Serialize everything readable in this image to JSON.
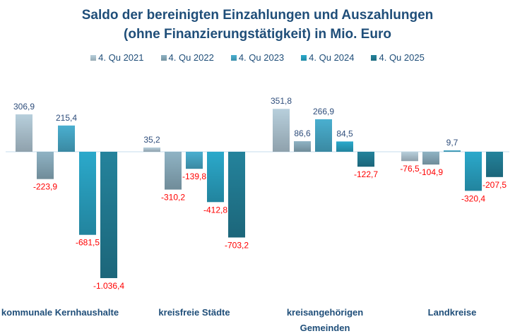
{
  "chart_data": {
    "type": "bar",
    "title": "Saldo der bereinigten Einzahlungen und Auszahlungen",
    "subtitle": "(ohne Finanzierungstätigkeit) in Mio. Euro",
    "categories": [
      "kommunale Kernhaushalte",
      "kreisfreie Städte",
      "kreisangehörigen Gemeinden",
      "Landkreise"
    ],
    "series": [
      {
        "name": "4. Qu 2021",
        "values": [
          306.9,
          35.2,
          351.8,
          -76.5
        ],
        "labels": [
          "306,9",
          "35,2",
          "351,8",
          "-76,5"
        ]
      },
      {
        "name": "4. Qu 2022",
        "values": [
          -223.9,
          -310.2,
          86.6,
          -104.9
        ],
        "labels": [
          "-223,9",
          "-310,2",
          "86,6",
          "-104,9"
        ]
      },
      {
        "name": "4. Qu 2023",
        "values": [
          215.4,
          -139.8,
          266.9,
          9.7
        ],
        "labels": [
          "215,4",
          "-139,8",
          "266,9",
          "9,7"
        ]
      },
      {
        "name": "4. Qu 2024",
        "values": [
          -681.5,
          -412.8,
          84.5,
          -320.4
        ],
        "labels": [
          "-681,5",
          "-412,8",
          "84,5",
          "-320,4"
        ]
      },
      {
        "name": "4. Qu 2025",
        "values": [
          -1036.4,
          -703.2,
          -122.7,
          -207.5
        ],
        "labels": [
          "-1.036,4",
          "-703,2",
          "-122,7",
          "-207,5"
        ]
      }
    ],
    "legend_position": "top",
    "grid": false,
    "xlabel": "",
    "ylabel": "",
    "ylim": [
      -1100,
      400
    ],
    "colors": {
      "series": [
        "#b7cfdc",
        "#8fb3c4",
        "#4aafd0",
        "#2ba9cb",
        "#24839c"
      ],
      "positive_label": "#2e4d7b",
      "negative_label": "#ff0000",
      "title": "#1f4e79",
      "zero_line": "#c5dcec"
    }
  }
}
